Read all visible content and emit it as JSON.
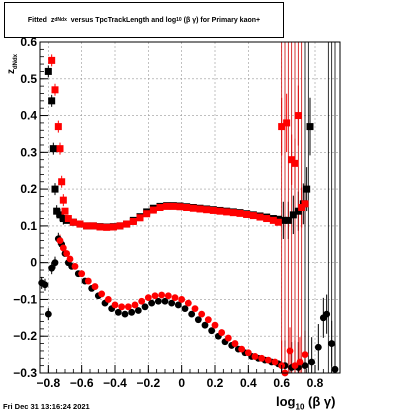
{
  "title": {
    "prefix": "Fitted",
    "z_sub": "dNdx",
    "middle": "versus TpcTrackLength and log",
    "log_sub": "10",
    "suffix": "(β γ) for Primary kaon+"
  },
  "timestamp": "Fri Dec 31 13:16:24 2021",
  "axis_labels": {
    "x_main": "log",
    "x_sub": "10",
    "x_tail": "(β γ)",
    "y_main": "z",
    "y_sub": "dNdx"
  },
  "chart_data": {
    "type": "scatter",
    "xlim": [
      -0.85,
      0.95
    ],
    "ylim": [
      -0.3,
      0.6
    ],
    "x_ticks": [
      -0.8,
      -0.6,
      -0.4,
      -0.2,
      0,
      0.2,
      0.4,
      0.6,
      0.8
    ],
    "x_tick_labels": [
      "−0.8",
      "−0.6",
      "−0.4",
      "−0.2",
      "0",
      "0.2",
      "0.4",
      "0.6",
      "0.8"
    ],
    "y_ticks": [
      -0.3,
      -0.2,
      -0.1,
      0,
      0.1,
      0.2,
      0.3,
      0.4,
      0.5,
      0.6
    ],
    "y_tick_labels": [
      "−0.3",
      "−0.2",
      "−0.1",
      "0",
      "0.1",
      "0.2",
      "0.3",
      "0.4",
      "0.5",
      "0.6"
    ],
    "grid": true,
    "series": [
      {
        "color": "#000000",
        "marker": "square",
        "points": [
          [
            -0.8,
            0.52
          ],
          [
            -0.78,
            0.44
          ],
          [
            -0.77,
            0.31
          ],
          [
            -0.76,
            0.2
          ],
          [
            -0.75,
            0.14
          ],
          [
            -0.73,
            0.13
          ],
          [
            -0.71,
            0.12
          ],
          [
            -0.69,
            0.115
          ],
          [
            -0.65,
            0.11
          ],
          [
            -0.61,
            0.105
          ],
          [
            -0.57,
            0.1
          ],
          [
            -0.53,
            0.1
          ],
          [
            -0.49,
            0.098
          ],
          [
            -0.45,
            0.097
          ],
          [
            -0.41,
            0.098
          ],
          [
            -0.37,
            0.1
          ],
          [
            -0.33,
            0.105
          ],
          [
            -0.29,
            0.115
          ],
          [
            -0.25,
            0.125
          ],
          [
            -0.21,
            0.138
          ],
          [
            -0.17,
            0.148
          ],
          [
            -0.13,
            0.153
          ],
          [
            -0.09,
            0.155
          ],
          [
            -0.05,
            0.155
          ],
          [
            -0.01,
            0.154
          ],
          [
            0.03,
            0.152
          ],
          [
            0.07,
            0.15
          ],
          [
            0.11,
            0.148
          ],
          [
            0.15,
            0.146
          ],
          [
            0.19,
            0.144
          ],
          [
            0.23,
            0.142
          ],
          [
            0.27,
            0.14
          ],
          [
            0.31,
            0.138
          ],
          [
            0.35,
            0.136
          ],
          [
            0.39,
            0.133
          ],
          [
            0.43,
            0.13
          ],
          [
            0.47,
            0.127
          ],
          [
            0.51,
            0.124
          ],
          [
            0.55,
            0.12
          ],
          [
            0.58,
            0.118
          ],
          [
            0.61,
            0.115
          ],
          [
            0.64,
            0.115
          ],
          [
            0.67,
            0.13
          ],
          [
            0.7,
            0.14
          ],
          [
            0.73,
            0.16
          ],
          [
            0.75,
            0.2
          ],
          [
            0.77,
            0.37
          ]
        ]
      },
      {
        "color": "#000000",
        "marker": "circle",
        "points": [
          [
            -0.84,
            -0.055
          ],
          [
            -0.82,
            -0.06
          ],
          [
            -0.8,
            -0.14
          ],
          [
            -0.78,
            -0.015
          ],
          [
            -0.76,
            0.0
          ],
          [
            -0.74,
            0.065
          ],
          [
            -0.72,
            0.05
          ],
          [
            -0.7,
            0.025
          ],
          [
            -0.68,
            0.0
          ],
          [
            -0.66,
            -0.01
          ],
          [
            -0.62,
            -0.03
          ],
          [
            -0.58,
            -0.05
          ],
          [
            -0.54,
            -0.07
          ],
          [
            -0.5,
            -0.09
          ],
          [
            -0.46,
            -0.11
          ],
          [
            -0.42,
            -0.125
          ],
          [
            -0.38,
            -0.135
          ],
          [
            -0.34,
            -0.14
          ],
          [
            -0.3,
            -0.135
          ],
          [
            -0.26,
            -0.13
          ],
          [
            -0.22,
            -0.12
          ],
          [
            -0.18,
            -0.11
          ],
          [
            -0.14,
            -0.105
          ],
          [
            -0.1,
            -0.105
          ],
          [
            -0.06,
            -0.11
          ],
          [
            -0.02,
            -0.115
          ],
          [
            0.02,
            -0.125
          ],
          [
            0.06,
            -0.14
          ],
          [
            0.1,
            -0.155
          ],
          [
            0.14,
            -0.17
          ],
          [
            0.18,
            -0.185
          ],
          [
            0.22,
            -0.2
          ],
          [
            0.26,
            -0.215
          ],
          [
            0.3,
            -0.225
          ],
          [
            0.34,
            -0.235
          ],
          [
            0.38,
            -0.245
          ],
          [
            0.42,
            -0.255
          ],
          [
            0.46,
            -0.26
          ],
          [
            0.5,
            -0.265
          ],
          [
            0.54,
            -0.27
          ],
          [
            0.58,
            -0.275
          ],
          [
            0.62,
            -0.28
          ],
          [
            0.66,
            -0.285
          ],
          [
            0.7,
            -0.285
          ],
          [
            0.74,
            -0.28
          ],
          [
            0.78,
            -0.27
          ],
          [
            0.82,
            -0.23
          ],
          [
            0.85,
            -0.15
          ],
          [
            0.87,
            -0.14
          ],
          [
            0.9,
            -0.22
          ],
          [
            0.92,
            -0.29
          ]
        ]
      },
      {
        "color": "#ff0000",
        "marker": "square",
        "points": [
          [
            -0.78,
            0.55
          ],
          [
            -0.76,
            0.47
          ],
          [
            -0.74,
            0.37
          ],
          [
            -0.73,
            0.31
          ],
          [
            -0.72,
            0.22
          ],
          [
            -0.71,
            0.17
          ],
          [
            -0.7,
            0.14
          ],
          [
            -0.68,
            0.12
          ],
          [
            -0.65,
            0.11
          ],
          [
            -0.61,
            0.105
          ],
          [
            -0.57,
            0.1
          ],
          [
            -0.53,
            0.1
          ],
          [
            -0.49,
            0.097
          ],
          [
            -0.45,
            0.096
          ],
          [
            -0.41,
            0.097
          ],
          [
            -0.37,
            0.1
          ],
          [
            -0.33,
            0.105
          ],
          [
            -0.29,
            0.112
          ],
          [
            -0.25,
            0.122
          ],
          [
            -0.21,
            0.133
          ],
          [
            -0.17,
            0.143
          ],
          [
            -0.13,
            0.15
          ],
          [
            -0.09,
            0.153
          ],
          [
            -0.05,
            0.153
          ],
          [
            -0.01,
            0.152
          ],
          [
            0.03,
            0.15
          ],
          [
            0.07,
            0.148
          ],
          [
            0.11,
            0.146
          ],
          [
            0.15,
            0.144
          ],
          [
            0.19,
            0.142
          ],
          [
            0.23,
            0.14
          ],
          [
            0.27,
            0.138
          ],
          [
            0.31,
            0.136
          ],
          [
            0.35,
            0.134
          ],
          [
            0.39,
            0.131
          ],
          [
            0.43,
            0.128
          ],
          [
            0.47,
            0.124
          ],
          [
            0.51,
            0.12
          ],
          [
            0.55,
            0.115
          ],
          [
            0.58,
            0.11
          ],
          [
            0.6,
            0.37
          ],
          [
            0.63,
            0.38
          ],
          [
            0.66,
            0.28
          ],
          [
            0.68,
            0.27
          ],
          [
            0.7,
            0.4
          ],
          [
            0.72,
            0.15
          ],
          [
            0.74,
            0.16
          ]
        ]
      },
      {
        "color": "#ff0000",
        "marker": "circle",
        "points": [
          [
            -0.73,
            0.06
          ],
          [
            -0.71,
            0.04
          ],
          [
            -0.69,
            0.025
          ],
          [
            -0.67,
            0.01
          ],
          [
            -0.64,
            -0.01
          ],
          [
            -0.6,
            -0.03
          ],
          [
            -0.56,
            -0.05
          ],
          [
            -0.52,
            -0.065
          ],
          [
            -0.48,
            -0.085
          ],
          [
            -0.44,
            -0.1
          ],
          [
            -0.4,
            -0.115
          ],
          [
            -0.36,
            -0.12
          ],
          [
            -0.32,
            -0.12
          ],
          [
            -0.28,
            -0.115
          ],
          [
            -0.24,
            -0.105
          ],
          [
            -0.2,
            -0.095
          ],
          [
            -0.16,
            -0.09
          ],
          [
            -0.12,
            -0.088
          ],
          [
            -0.08,
            -0.09
          ],
          [
            -0.04,
            -0.095
          ],
          [
            0.0,
            -0.1
          ],
          [
            0.04,
            -0.11
          ],
          [
            0.08,
            -0.125
          ],
          [
            0.12,
            -0.14
          ],
          [
            0.16,
            -0.155
          ],
          [
            0.2,
            -0.17
          ],
          [
            0.24,
            -0.19
          ],
          [
            0.28,
            -0.205
          ],
          [
            0.32,
            -0.22
          ],
          [
            0.36,
            -0.235
          ],
          [
            0.4,
            -0.245
          ],
          [
            0.44,
            -0.255
          ],
          [
            0.48,
            -0.26
          ],
          [
            0.52,
            -0.265
          ],
          [
            0.56,
            -0.27
          ],
          [
            0.6,
            -0.28
          ],
          [
            0.62,
            -0.3
          ],
          [
            0.65,
            -0.24
          ],
          [
            0.68,
            -0.28
          ],
          [
            0.71,
            -0.27
          ],
          [
            0.74,
            -0.25
          ]
        ]
      }
    ]
  }
}
